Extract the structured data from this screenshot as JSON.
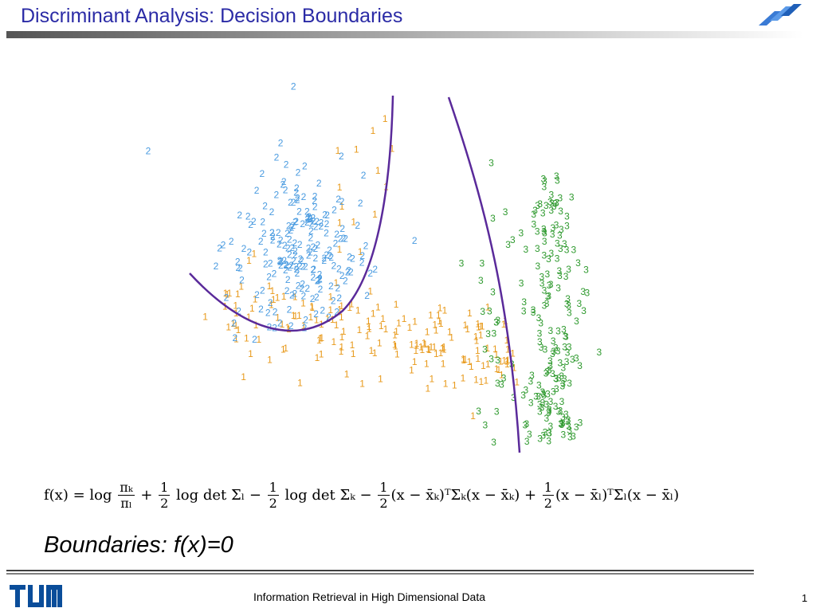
{
  "header": {
    "title": "Discriminant Analysis: Decision Boundaries"
  },
  "figure": {
    "classes": [
      {
        "label": "1",
        "color": "#e89a1c"
      },
      {
        "label": "2",
        "color": "#4a9be0"
      },
      {
        "label": "3",
        "color": "#2f9a2f"
      }
    ]
  },
  "formula": [
    "f(x) = log ",
    {
      "num": "πₖ",
      "den": "πₗ"
    },
    " + ",
    {
      "num": "1",
      "den": "2"
    },
    " log det Σₗ − ",
    {
      "num": "1",
      "den": "2"
    },
    " log det Σₖ − ",
    {
      "num": "1",
      "den": "2"
    },
    "(x − x̄ₖ)ᵀΣₖ(x − x̄ₖ) + ",
    {
      "num": "1",
      "den": "2"
    },
    "(x − x̄ₗ)ᵀΣₗ(x − x̄ₗ)"
  ],
  "statement": "Boundaries: f(x)=0",
  "footer": {
    "course": "Information Retrieval in High Dimensional Data",
    "page": "1"
  }
}
